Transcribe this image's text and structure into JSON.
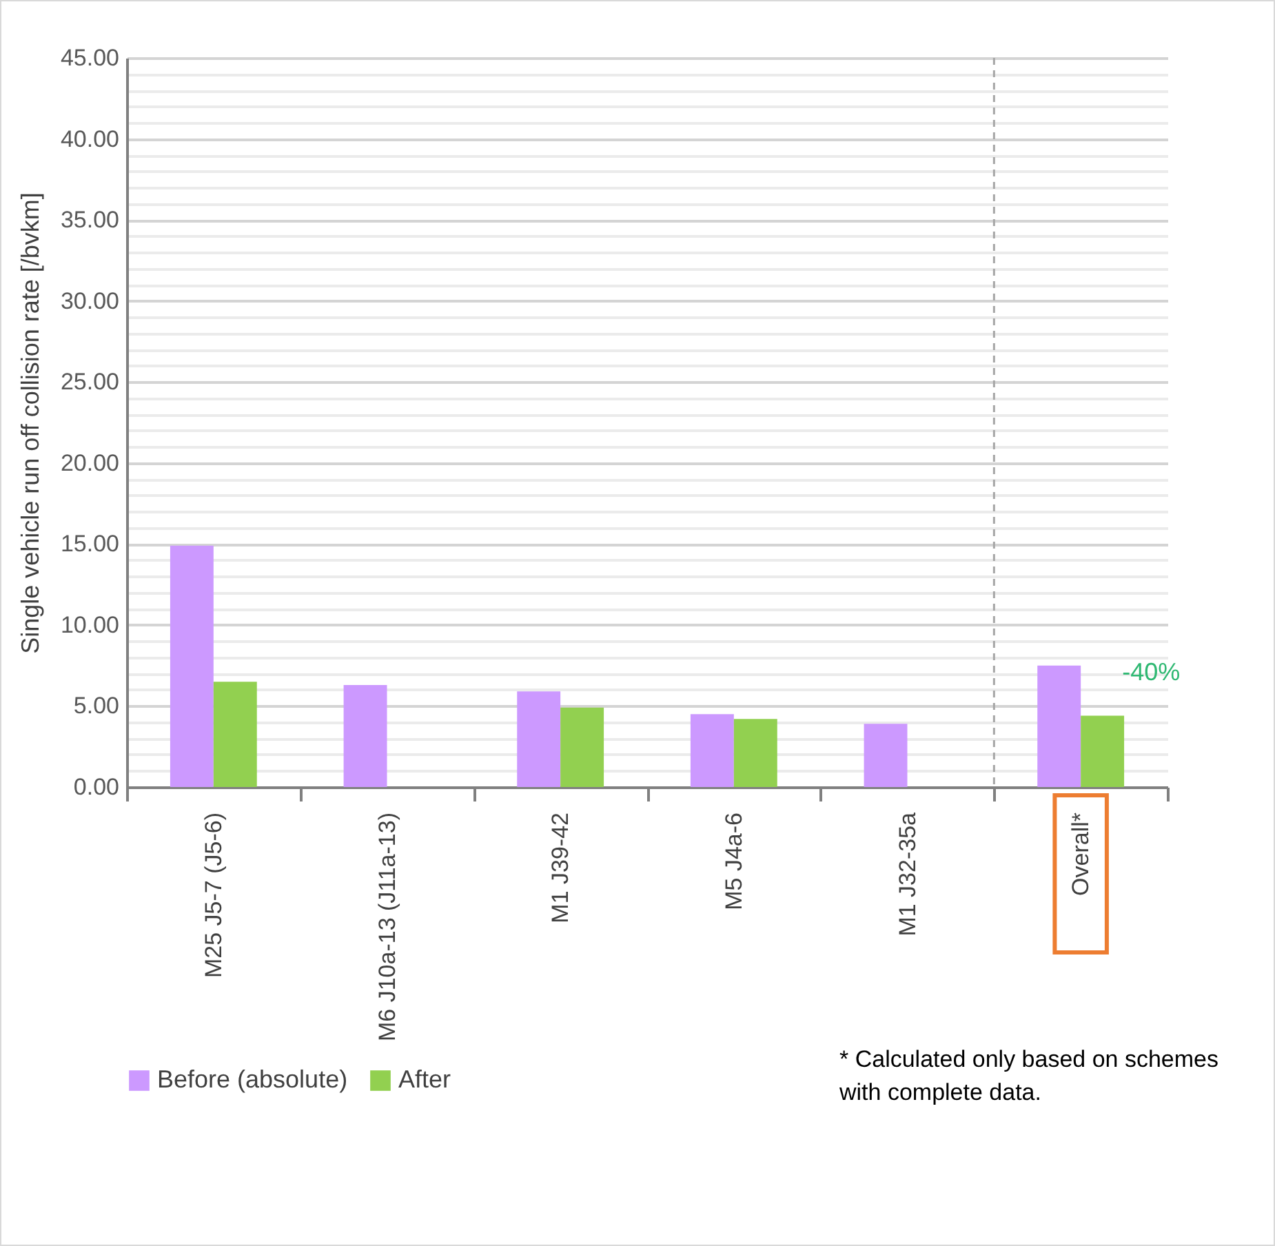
{
  "chart_data": {
    "type": "bar",
    "ylabel": "Single vehicle run off collision rate [/bvkm]",
    "categories": [
      "M25 J5-7 (J5-6)",
      "M6 J10a-13 (J11a-13)",
      "M1 J39-42",
      "M5 J4a-6",
      "M1 J32-35a",
      "Overall*"
    ],
    "series": [
      {
        "name": "Before (absolute)",
        "color": "#cc99ff",
        "values": [
          14.9,
          6.3,
          5.9,
          4.5,
          3.9,
          7.5
        ]
      },
      {
        "name": "After",
        "color": "#92d050",
        "values": [
          6.5,
          null,
          4.9,
          4.2,
          null,
          4.4
        ]
      }
    ],
    "ylim": [
      0,
      45
    ],
    "yticks": [
      {
        "value": 0,
        "label": "0.00"
      },
      {
        "value": 1,
        "label": null
      },
      {
        "value": 2,
        "label": null
      },
      {
        "value": 3,
        "label": null
      },
      {
        "value": 4,
        "label": null
      },
      {
        "value": 5,
        "label": "5.00"
      },
      {
        "value": 6,
        "label": null
      },
      {
        "value": 7,
        "label": null
      },
      {
        "value": 8,
        "label": null
      },
      {
        "value": 9,
        "label": null
      },
      {
        "value": 10,
        "label": "10.00"
      },
      {
        "value": 11,
        "label": null
      },
      {
        "value": 12,
        "label": null
      },
      {
        "value": 13,
        "label": null
      },
      {
        "value": 14,
        "label": null
      },
      {
        "value": 15,
        "label": "15.00"
      },
      {
        "value": 16,
        "label": null
      },
      {
        "value": 17,
        "label": null
      },
      {
        "value": 18,
        "label": null
      },
      {
        "value": 19,
        "label": null
      },
      {
        "value": 20,
        "label": "20.00"
      },
      {
        "value": 21,
        "label": null
      },
      {
        "value": 22,
        "label": null
      },
      {
        "value": 23,
        "label": null
      },
      {
        "value": 24,
        "label": null
      },
      {
        "value": 25,
        "label": "25.00"
      },
      {
        "value": 26,
        "label": null
      },
      {
        "value": 27,
        "label": null
      },
      {
        "value": 28,
        "label": null
      },
      {
        "value": 29,
        "label": null
      },
      {
        "value": 30,
        "label": "30.00"
      },
      {
        "value": 31,
        "label": null
      },
      {
        "value": 32,
        "label": null
      },
      {
        "value": 33,
        "label": null
      },
      {
        "value": 34,
        "label": null
      },
      {
        "value": 35,
        "label": "35.00"
      },
      {
        "value": 36,
        "label": null
      },
      {
        "value": 37,
        "label": null
      },
      {
        "value": 38,
        "label": null
      },
      {
        "value": 39,
        "label": null
      },
      {
        "value": 40,
        "label": "40.00"
      },
      {
        "value": 41,
        "label": null
      },
      {
        "value": 42,
        "label": null
      },
      {
        "value": 43,
        "label": null
      },
      {
        "value": 44,
        "label": null
      },
      {
        "value": 45,
        "label": "45.00"
      }
    ],
    "grid": "y",
    "legend": "bottom",
    "ref_lines": [
      {
        "axis": "x",
        "value": "Overall*",
        "line_style": "dashed",
        "color": "#a6a6a6"
      }
    ],
    "annotations": [
      {
        "text": "-40%",
        "x": "Overall*",
        "y": 4.4
      },
      "* Calculated only based on schemes with complete data."
    ]
  }
}
